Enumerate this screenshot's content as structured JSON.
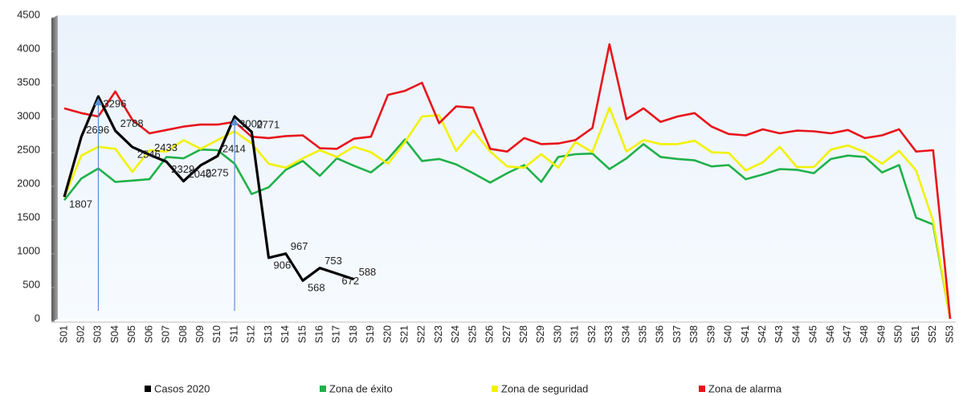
{
  "chart_data": {
    "type": "line",
    "categories": [
      "S01",
      "S02",
      "S03",
      "S04",
      "S05",
      "S06",
      "S07",
      "S08",
      "S09",
      "S10",
      "S11",
      "S12",
      "S13",
      "S14",
      "S15",
      "S16",
      "S17",
      "S18",
      "S19",
      "S20",
      "S21",
      "S22",
      "S23",
      "S24",
      "S25",
      "S26",
      "S27",
      "S28",
      "S29",
      "S30",
      "S31",
      "S32",
      "S33",
      "S34",
      "S35",
      "S36",
      "S37",
      "S38",
      "S39",
      "S40",
      "S41",
      "S42",
      "S43",
      "S44",
      "S45",
      "S46",
      "S47",
      "S48",
      "S49",
      "S50",
      "S51",
      "S52",
      "S53"
    ],
    "series": [
      {
        "name": "Casos 2020",
        "color": "#000000",
        "data_labels": true,
        "values": [
          1807,
          2696,
          3296,
          2788,
          2546,
          2433,
          2329,
          2040,
          2275,
          2414,
          3000,
          2771,
          906,
          967,
          568,
          753,
          672,
          588,
          null,
          null,
          null,
          null,
          null,
          null,
          null,
          null,
          null,
          null,
          null,
          null,
          null,
          null,
          null,
          null,
          null,
          null,
          null,
          null,
          null,
          null,
          null,
          null,
          null,
          null,
          null,
          null,
          null,
          null,
          null,
          null,
          null,
          null,
          null
        ]
      },
      {
        "name": "Zona de éxito",
        "color": "#1fb14a",
        "values": [
          1760,
          2080,
          2230,
          2030,
          2050,
          2070,
          2400,
          2380,
          2510,
          2500,
          2300,
          1850,
          1950,
          2210,
          2340,
          2120,
          2380,
          2270,
          2170,
          2370,
          2660,
          2340,
          2370,
          2290,
          2160,
          2020,
          2160,
          2280,
          2030,
          2400,
          2440,
          2450,
          2220,
          2380,
          2590,
          2400,
          2370,
          2350,
          2260,
          2280,
          2070,
          2140,
          2220,
          2210,
          2160,
          2370,
          2420,
          2400,
          2170,
          2280,
          1500,
          1400,
          0
        ]
      },
      {
        "name": "Zona de seguridad",
        "color": "#f2f200",
        "values": [
          1800,
          2420,
          2550,
          2520,
          2180,
          2500,
          2480,
          2650,
          2520,
          2650,
          2780,
          2600,
          2300,
          2240,
          2380,
          2500,
          2400,
          2550,
          2470,
          2300,
          2620,
          3000,
          3020,
          2490,
          2790,
          2480,
          2260,
          2240,
          2440,
          2240,
          2620,
          2470,
          3130,
          2480,
          2650,
          2590,
          2590,
          2640,
          2470,
          2460,
          2200,
          2320,
          2550,
          2250,
          2250,
          2510,
          2570,
          2470,
          2300,
          2490,
          2200,
          1450,
          0
        ]
      },
      {
        "name": "Zona de alarma",
        "color": "#e8141b",
        "values": [
          3120,
          3050,
          3000,
          3370,
          2950,
          2750,
          2800,
          2850,
          2880,
          2880,
          2920,
          2700,
          2680,
          2710,
          2720,
          2530,
          2520,
          2670,
          2700,
          3320,
          3380,
          3500,
          2900,
          3150,
          3130,
          2520,
          2480,
          2680,
          2590,
          2600,
          2650,
          2830,
          4070,
          2960,
          3120,
          2920,
          3000,
          3050,
          2850,
          2740,
          2720,
          2810,
          2750,
          2790,
          2780,
          2750,
          2800,
          2680,
          2720,
          2810,
          2480,
          2500,
          0
        ]
      }
    ],
    "ylim": [
      0,
      4500
    ],
    "yticks": [
      0,
      500,
      1000,
      1500,
      2000,
      2500,
      3000,
      3500,
      4000,
      4500
    ],
    "legend": "bottom"
  }
}
